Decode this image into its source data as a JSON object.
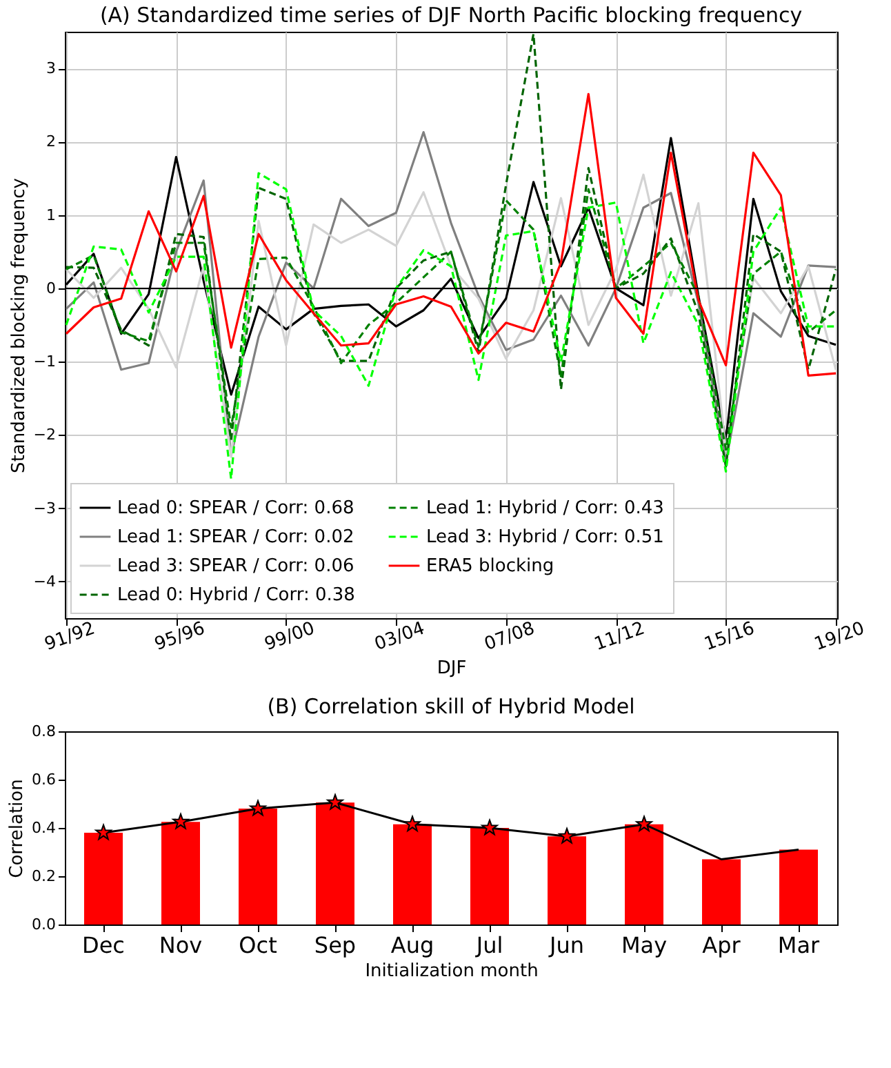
{
  "chart_data": [
    {
      "type": "line",
      "title": "(A) Standardized time series of DJF North Pacific blocking frequency",
      "xlabel": "DJF",
      "ylabel": "Standardized blocking frequency",
      "categories": [
        "91/92",
        null,
        null,
        null,
        "95/96",
        null,
        null,
        null,
        "99/00",
        null,
        null,
        null,
        "03/04",
        null,
        null,
        null,
        "07/08",
        null,
        null,
        null,
        "11/12",
        null,
        null,
        null,
        "15/16",
        null,
        null,
        null,
        "19/20"
      ],
      "ylim": [
        -4.5,
        3.5
      ],
      "yticks": [
        -4,
        -3,
        -2,
        -1,
        0,
        1,
        2,
        3
      ],
      "grid": true,
      "legend": "bottom left",
      "ref_lines": [
        {
          "axis": "y",
          "value": 0,
          "color": "#000000"
        }
      ],
      "series": [
        {
          "name": "Lead 0: SPEAR / Corr: 0.68",
          "color": "#000000",
          "line_style": "solid",
          "values": [
            0.05,
            0.47,
            -0.62,
            -0.08,
            1.79,
            0.1,
            -1.45,
            -0.25,
            -0.56,
            -0.28,
            -0.24,
            -0.22,
            -0.52,
            -0.3,
            0.13,
            -0.68,
            -0.14,
            1.45,
            0.3,
            1.1,
            0.0,
            -0.23,
            2.05,
            -0.1,
            -2.07,
            1.22,
            -0.04,
            -0.65,
            -0.77
          ]
        },
        {
          "name": "Lead 1: SPEAR / Corr: 0.02",
          "color": "#808080",
          "line_style": "solid",
          "values": [
            -0.28,
            0.08,
            -1.11,
            -1.02,
            0.5,
            1.47,
            -2.28,
            -0.66,
            0.35,
            0.0,
            1.22,
            0.85,
            1.03,
            2.13,
            0.89,
            -0.1,
            -0.84,
            -0.7,
            -0.1,
            -0.78,
            0.0,
            1.1,
            1.3,
            -0.2,
            -2.37,
            -0.34,
            -0.66,
            0.31,
            0.29
          ]
        },
        {
          "name": "Lead 3: SPEAR / Corr: 0.06",
          "color": "#d3d3d3",
          "line_style": "solid",
          "values": [
            0.26,
            -0.13,
            0.28,
            -0.28,
            -1.08,
            0.3,
            -2.3,
            0.92,
            -0.78,
            0.87,
            0.62,
            0.8,
            0.58,
            1.31,
            0.3,
            -0.14,
            -0.96,
            -0.3,
            1.23,
            -0.5,
            0.26,
            1.55,
            -0.1,
            1.16,
            -2.2,
            0.14,
            -0.34,
            0.3,
            -1.11
          ]
        },
        {
          "name": "Lead 0: Hybrid / Corr: 0.38",
          "color": "#006400",
          "line_style": "dashed",
          "values": [
            0.29,
            0.28,
            -0.57,
            -0.78,
            0.74,
            0.7,
            -2.07,
            1.37,
            1.22,
            -0.34,
            -0.99,
            -0.99,
            0.0,
            0.38,
            0.5,
            -0.87,
            1.41,
            3.47,
            -1.38,
            1.64,
            0.0,
            0.2,
            0.68,
            -0.34,
            -2.43,
            0.74,
            0.5,
            -1.11,
            0.26
          ]
        },
        {
          "name": "Lead 1: Hybrid / Corr: 0.43",
          "color": "#008000",
          "line_style": "dashed",
          "values": [
            0.26,
            0.45,
            -0.6,
            -0.72,
            0.62,
            0.62,
            -1.9,
            0.4,
            0.42,
            -0.25,
            -1.02,
            -0.5,
            -0.2,
            0.15,
            0.5,
            -0.8,
            1.2,
            0.8,
            -1.2,
            1.35,
            0.0,
            0.3,
            0.62,
            -0.1,
            -2.2,
            0.2,
            0.5,
            -0.6,
            -0.3
          ]
        },
        {
          "name": "Lead 3: Hybrid / Corr: 0.51",
          "color": "#00ff00",
          "line_style": "dashed",
          "values": [
            -0.5,
            0.57,
            0.53,
            -0.33,
            0.43,
            0.43,
            -2.6,
            1.57,
            1.35,
            -0.3,
            -0.65,
            -1.33,
            0.0,
            0.52,
            0.3,
            -1.25,
            0.72,
            0.78,
            -1.0,
            1.1,
            1.17,
            -0.75,
            0.22,
            -0.5,
            -2.5,
            0.5,
            1.1,
            -0.52,
            -0.52
          ]
        },
        {
          "name": "ERA5 blocking",
          "color": "#ff0000",
          "line_style": "solid",
          "values": [
            -0.62,
            -0.26,
            -0.14,
            1.05,
            0.23,
            1.26,
            -0.81,
            0.74,
            0.11,
            -0.34,
            -0.78,
            -0.75,
            -0.22,
            -0.11,
            -0.25,
            -0.89,
            -0.47,
            -0.59,
            0.35,
            2.65,
            -0.13,
            -0.62,
            1.85,
            -0.16,
            -1.05,
            1.85,
            1.27,
            -1.19,
            -1.16
          ]
        }
      ]
    },
    {
      "type": "bar",
      "title": "(B) Correlation skill of Hybrid Model",
      "xlabel": "Initialization month",
      "ylabel": "Correlation",
      "categories": [
        "Dec",
        "Nov",
        "Oct",
        "Sep",
        "Aug",
        "Jul",
        "Jun",
        "May",
        "Apr",
        "Mar"
      ],
      "ylim": [
        0,
        0.8
      ],
      "yticks": [
        {
          "value": 0,
          "label": "0.0"
        },
        0.2,
        0.4,
        0.6,
        0.8
      ],
      "grid": false,
      "legend": false,
      "series": [
        {
          "type": "bar",
          "color": "#ff0000",
          "values": [
            0.38,
            0.425,
            0.48,
            0.505,
            0.415,
            0.4,
            0.365,
            0.415,
            0.27,
            0.31
          ]
        },
        {
          "type": "line",
          "color": "#000000",
          "marker": "none",
          "values": [
            0.38,
            0.425,
            0.48,
            0.505,
            0.415,
            0.4,
            0.365,
            0.415,
            0.27,
            0.31
          ]
        },
        {
          "type": "scatter",
          "color": "#ff0000",
          "marker": "star",
          "x": [
            "Dec",
            "Nov",
            "Oct",
            "Sep",
            "Aug",
            "Jul",
            "Jun",
            "May"
          ],
          "values": [
            0.38,
            0.425,
            0.48,
            0.505,
            0.415,
            0.4,
            0.365,
            0.415
          ]
        }
      ]
    }
  ]
}
